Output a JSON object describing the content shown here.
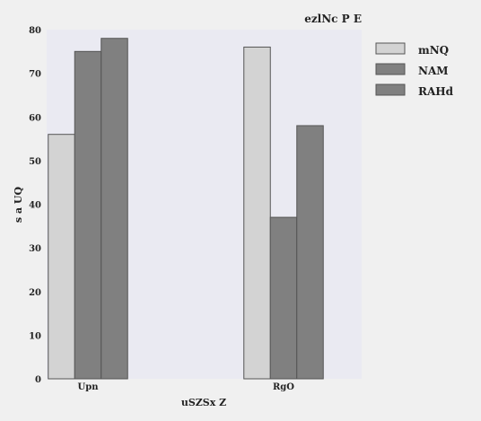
{
  "chart_data": {
    "type": "bar",
    "title": "ezlNc P E",
    "xlabel": "uSZSx Z",
    "ylabel": "s a UQ",
    "categories": [
      "Upn",
      "RgO"
    ],
    "series": [
      {
        "name": "mNQ",
        "values": [
          56,
          76
        ],
        "color": "#d3d3d3"
      },
      {
        "name": "NAM",
        "values": [
          75,
          37
        ],
        "color": "#808080"
      },
      {
        "name": "RAHd",
        "values": [
          78,
          58
        ],
        "color": "#808080"
      }
    ],
    "ylim": [
      0,
      80
    ],
    "yticks": [
      0,
      10,
      20,
      30,
      40,
      50,
      60,
      70,
      80
    ],
    "grid": false,
    "legend_position": "right",
    "plot_background": "#eaeaf2",
    "figure_background": "#f0f0f0",
    "bar_edge_color": "#555555"
  }
}
